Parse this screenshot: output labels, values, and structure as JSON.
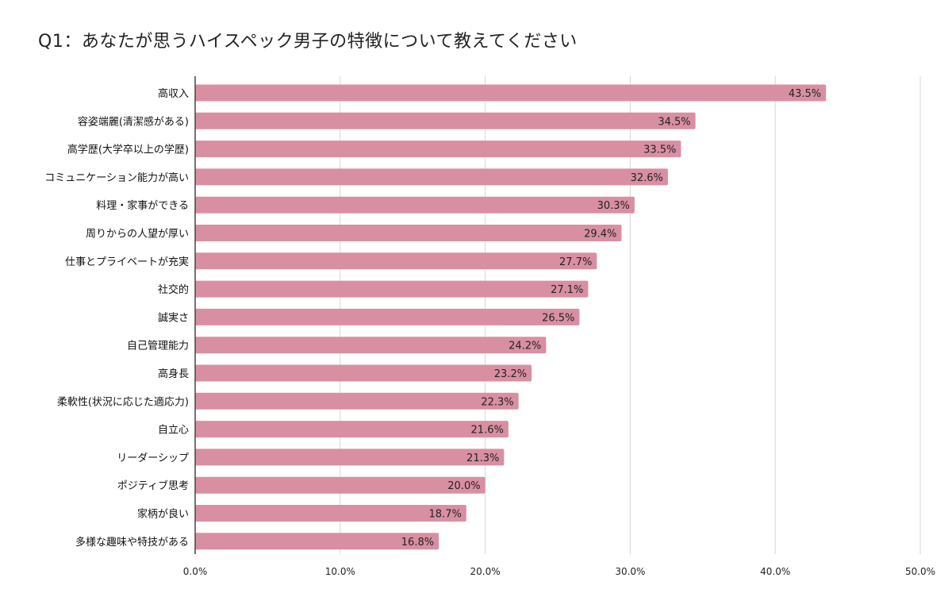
{
  "chart_data": {
    "type": "bar",
    "orientation": "horizontal",
    "title": "Q1：あなたが思うハイスペック男子の特徴について教えてください",
    "categories": [
      "高収入",
      "容姿端麗(清潔感がある)",
      "高学歴(大学卒以上の学歴)",
      "コミュニケーション能力が高い",
      "料理・家事ができる",
      "周りからの人望が厚い",
      "仕事とプライベートが充実",
      "社交的",
      "誠実さ",
      "自己管理能力",
      "高身長",
      "柔軟性(状況に応じた適応力)",
      "自立心",
      "リーダーシップ",
      "ポジティブ思考",
      "家柄が良い",
      "多様な趣味や特技がある"
    ],
    "values": [
      43.5,
      34.5,
      33.5,
      32.6,
      30.3,
      29.4,
      27.7,
      27.1,
      26.5,
      24.2,
      23.2,
      22.3,
      21.6,
      21.3,
      20.0,
      18.7,
      16.8
    ],
    "value_labels": [
      "43.5%",
      "34.5%",
      "33.5%",
      "32.6%",
      "30.3%",
      "29.4%",
      "27.7%",
      "27.1%",
      "26.5%",
      "24.2%",
      "23.2%",
      "22.3%",
      "21.6%",
      "21.3%",
      "20.0%",
      "18.7%",
      "16.8%"
    ],
    "xlim": [
      0,
      50
    ],
    "x_ticks": [
      0,
      10,
      20,
      30,
      40,
      50
    ],
    "x_tick_labels": [
      "0.0%",
      "10.0%",
      "20.0%",
      "30.0%",
      "40.0%",
      "50.0%"
    ],
    "grid": "vertical",
    "legend": "none",
    "colors": {
      "bar": "#d98fa2",
      "grid": "#d6d6d6",
      "axis": "#444444"
    }
  }
}
